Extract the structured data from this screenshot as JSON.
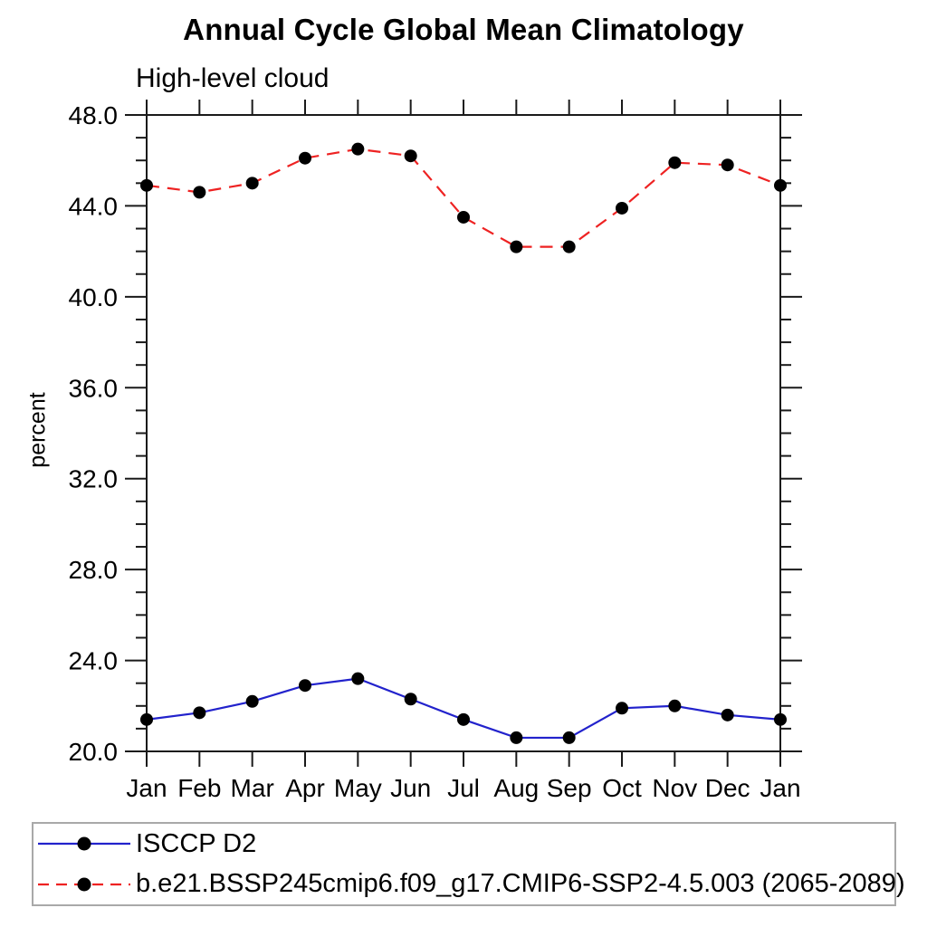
{
  "header": {
    "title": "Annual Cycle Global Mean Climatology",
    "subtitle": "High-level cloud"
  },
  "chart_data": {
    "type": "line",
    "title": "Annual Cycle Global Mean Climatology",
    "subtitle": "High-level cloud",
    "xlabel": "",
    "ylabel": "percent",
    "categories": [
      "Jan",
      "Feb",
      "Mar",
      "Apr",
      "May",
      "Jun",
      "Jul",
      "Aug",
      "Sep",
      "Oct",
      "Nov",
      "Dec",
      "Jan"
    ],
    "ylim": [
      20.0,
      48.0
    ],
    "ytick_major": [
      20.0,
      24.0,
      28.0,
      32.0,
      36.0,
      40.0,
      44.0,
      48.0
    ],
    "ytick_labels": [
      "20.0",
      "24.0",
      "28.0",
      "32.0",
      "36.0",
      "40.0",
      "44.0",
      "48.0"
    ],
    "ytick_minor_step": 1.0,
    "grid": false,
    "legend_position": "bottom-left-box",
    "frame_color": "#1a1a1a",
    "marker_color": "#000000",
    "series": [
      {
        "name": "ISCCP D2",
        "color": "#2222cc",
        "style": "solid",
        "marker": "circle",
        "values": [
          21.4,
          21.7,
          22.2,
          22.9,
          23.2,
          22.3,
          21.4,
          20.6,
          20.6,
          21.9,
          22.0,
          21.6,
          21.4
        ]
      },
      {
        "name": "b.e21.BSSP245cmip6.f09_g17.CMIP6-SSP2-4.5.003 (2065-2089)",
        "color": "#ee2222",
        "style": "dashed",
        "marker": "circle",
        "values": [
          44.9,
          44.6,
          45.0,
          46.1,
          46.5,
          46.2,
          43.5,
          42.2,
          42.2,
          43.9,
          45.9,
          45.8,
          44.9
        ]
      }
    ]
  }
}
